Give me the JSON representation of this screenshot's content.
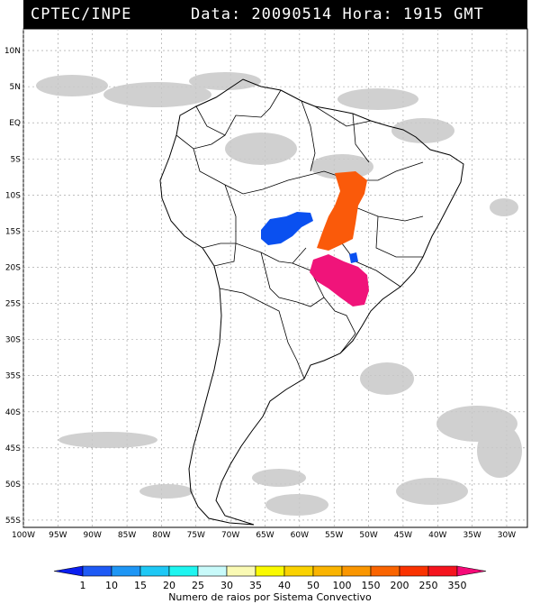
{
  "header": {
    "source": "CPTEC/INPE",
    "datetime": "Data: 20090514 Hora: 1915 GMT"
  },
  "map": {
    "lon_labels": [
      "100W",
      "95W",
      "90W",
      "85W",
      "80W",
      "75W",
      "70W",
      "65W",
      "60W",
      "55W",
      "50W",
      "45W",
      "40W",
      "35W",
      "30W"
    ],
    "lat_labels": [
      "10N",
      "5N",
      "EQ",
      "5S",
      "10S",
      "15S",
      "20S",
      "25S",
      "30S",
      "35S",
      "40S",
      "45S",
      "50S",
      "55S"
    ],
    "lon_range": [
      -100,
      -27
    ],
    "lat_range": [
      13,
      -56
    ]
  },
  "colorbar": {
    "values": [
      "1",
      "10",
      "15",
      "20",
      "25",
      "30",
      "35",
      "40",
      "50",
      "100",
      "150",
      "200",
      "250",
      "350"
    ],
    "colors": [
      "#0a1ef0",
      "#1e5af5",
      "#1e96f5",
      "#1ec8f5",
      "#1ef5f0",
      "#c8fafa",
      "#fafab4",
      "#fafa00",
      "#fad200",
      "#fab400",
      "#fa9600",
      "#fa6400",
      "#fa3200",
      "#f5141e",
      "#f50a78"
    ],
    "caption": "Numero de raios por Sistema Convectivo"
  },
  "systems": [
    {
      "name": "blue-system-bolivia",
      "color": "#0a50f0"
    },
    {
      "name": "orange-system-brazil",
      "color": "#fa5a0a"
    },
    {
      "name": "magenta-system-parana",
      "color": "#f0147a"
    },
    {
      "name": "small-blue-system",
      "color": "#0a50f0"
    }
  ]
}
